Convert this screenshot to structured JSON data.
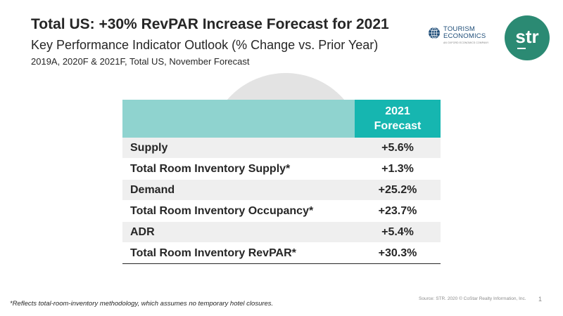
{
  "slide": {
    "title": "Total US: +30% RevPAR Increase Forecast for 2021",
    "subtitle": "Key Performance Indicator Outlook (% Change vs. Prior Year)",
    "meta": "2019A, 2020F & 2021F, Total US, November Forecast"
  },
  "logos": {
    "tourism_economics": {
      "line1": "TOURISM",
      "line2": "ECONOMICS",
      "tagline": "AN OXFORD ECONOMICS COMPANY",
      "icon": "globe-icon"
    },
    "str": {
      "text": "str",
      "bg_color": "#2b8a73"
    }
  },
  "table": {
    "header_label": "",
    "header_col_line1": "2021",
    "header_col_line2": "Forecast",
    "rows": [
      {
        "label": "Supply",
        "value": "+5.6%"
      },
      {
        "label": "Total Room Inventory Supply*",
        "value": "+1.3%"
      },
      {
        "label": "Demand",
        "value": "+25.2%"
      },
      {
        "label": "Total Room Inventory Occupancy*",
        "value": "+23.7%"
      },
      {
        "label": "ADR",
        "value": "+5.4%"
      },
      {
        "label": "Total Room Inventory RevPAR*",
        "value": "+30.3%"
      }
    ]
  },
  "footer": {
    "footnote": "*Reflects total-room-inventory methodology, which assumes no temporary hotel closures.",
    "source": "Source: STR. 2020 © CoStar Realty Information, Inc.",
    "page_number": "1"
  },
  "colors": {
    "accent_teal": "#16b6b0",
    "header_light_teal": "#8fd3cf",
    "row_stripe": "#efefef",
    "text_dark": "#262626"
  }
}
